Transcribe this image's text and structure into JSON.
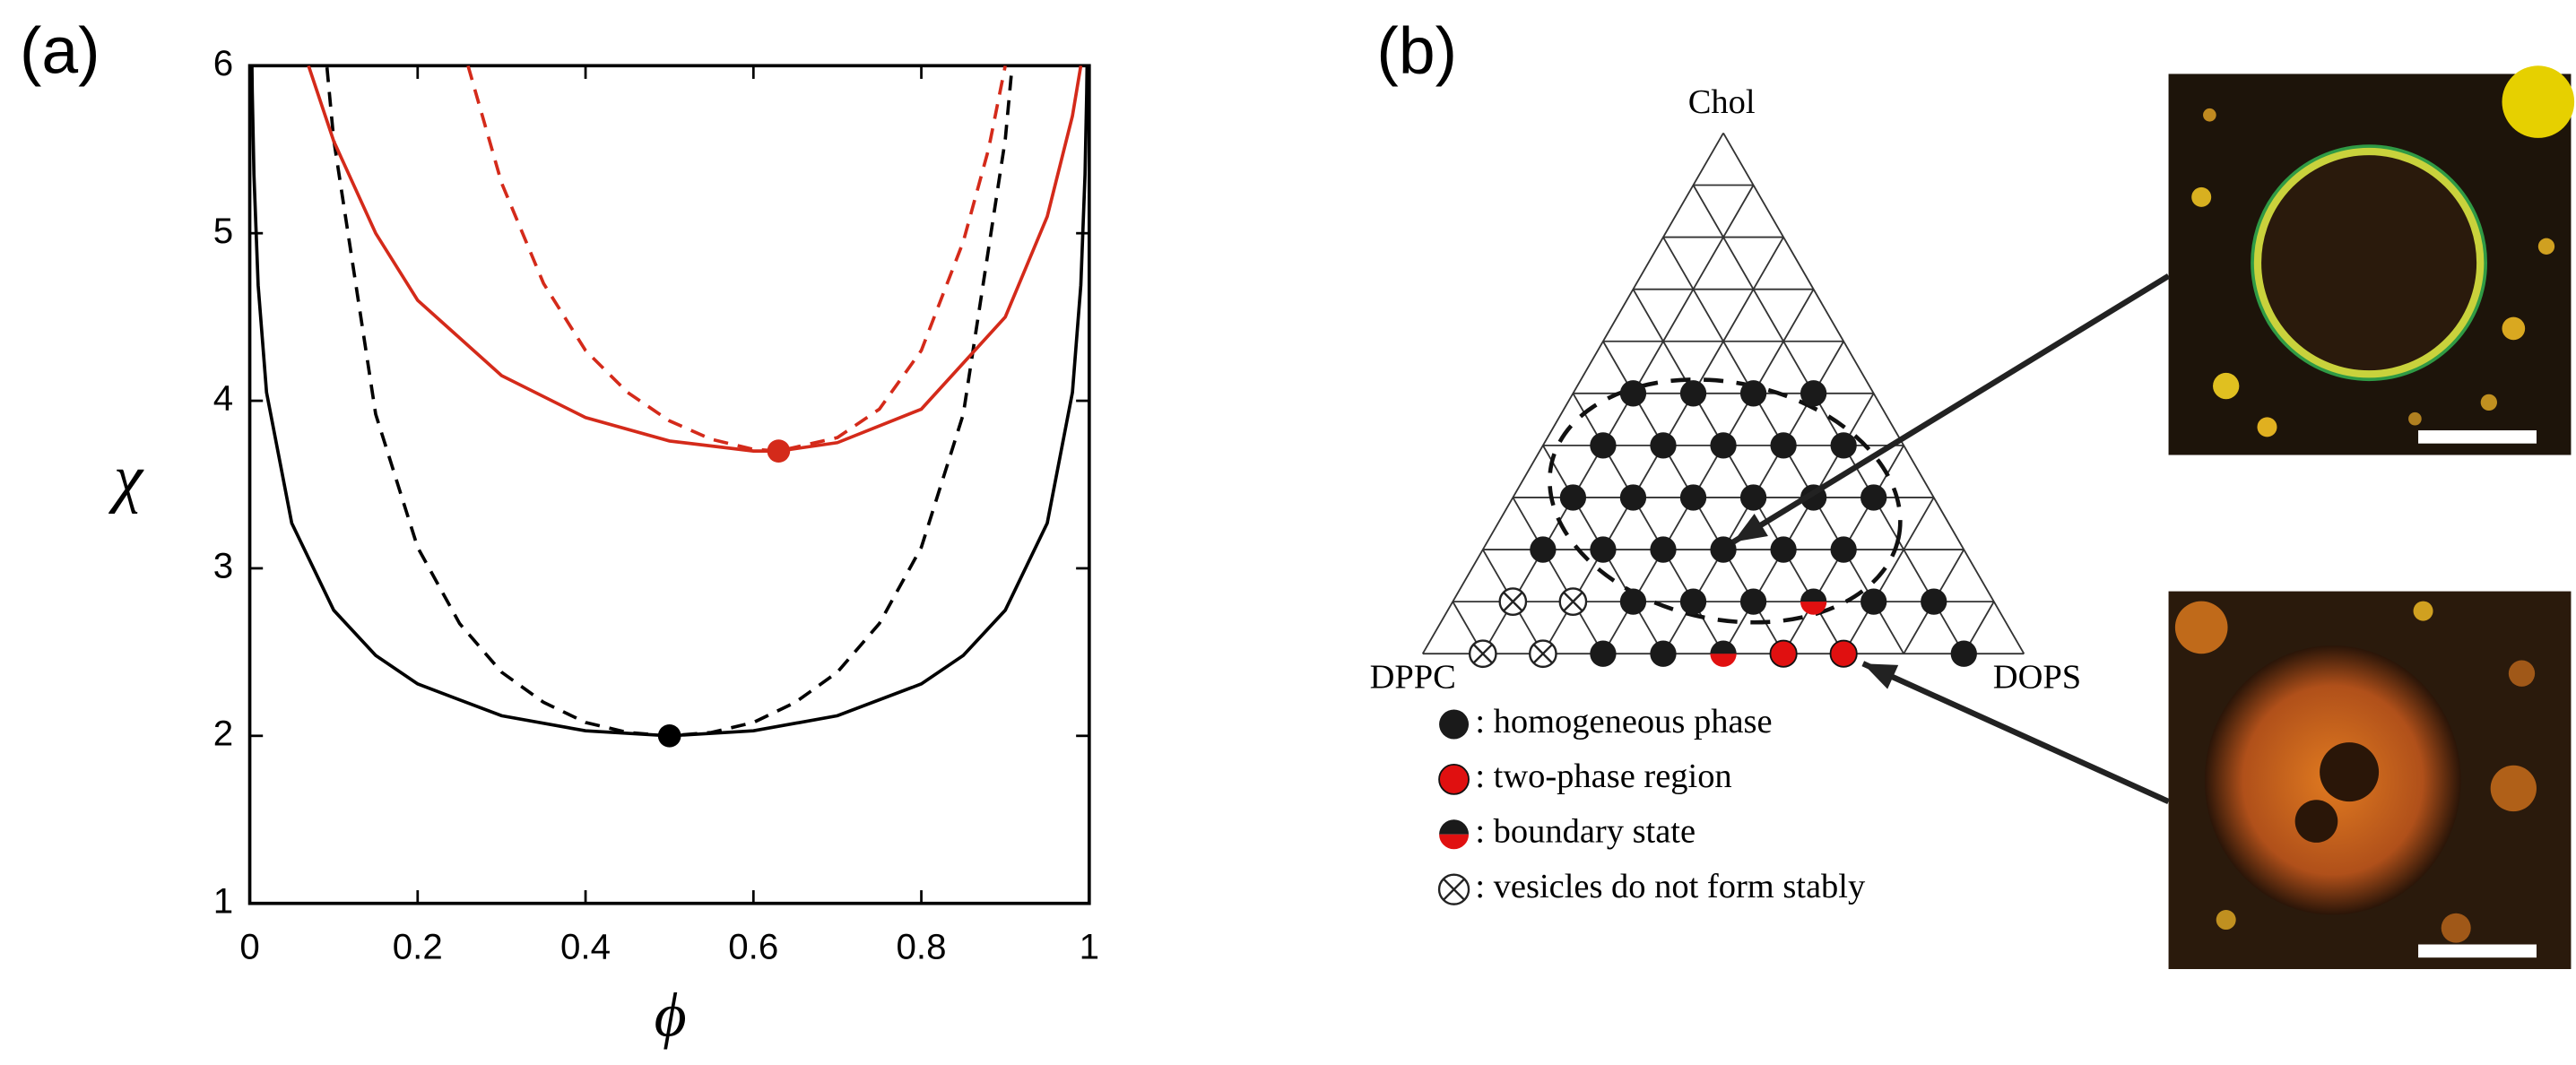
{
  "chart_data": {
    "type": "line",
    "panel_label": "(a)",
    "xlabel": "ϕ",
    "ylabel": "χ",
    "xlim": [
      0,
      1
    ],
    "ylim": [
      1,
      6
    ],
    "xticks": [
      0,
      0.2,
      0.4,
      0.6,
      0.8,
      1
    ],
    "yticks": [
      1,
      2,
      3,
      4,
      5,
      6
    ],
    "series": [
      {
        "color": "#000000",
        "linestyle": "solid",
        "x": [
          0.002,
          0.003,
          0.005,
          0.01,
          0.02,
          0.05,
          0.1,
          0.15,
          0.2,
          0.3,
          0.4,
          0.5,
          0.6,
          0.7,
          0.8,
          0.85,
          0.9,
          0.95,
          0.98,
          0.99,
          0.995,
          0.997,
          0.998
        ],
        "values": [
          6.24,
          5.84,
          5.35,
          4.69,
          4.05,
          3.27,
          2.75,
          2.48,
          2.31,
          2.12,
          2.03,
          2,
          2.03,
          2.12,
          2.31,
          2.48,
          2.75,
          3.27,
          4.05,
          4.69,
          5.35,
          5.84,
          6.24
        ]
      },
      {
        "color": "#000000",
        "linestyle": "dashed",
        "x": [
          0.092,
          0.1,
          0.15,
          0.2,
          0.25,
          0.3,
          0.35,
          0.4,
          0.45,
          0.5,
          0.55,
          0.6,
          0.65,
          0.7,
          0.75,
          0.8,
          0.85,
          0.9,
          0.908
        ],
        "values": [
          5.99,
          5.56,
          3.92,
          3.125,
          2.67,
          2.38,
          2.2,
          2.08,
          2.02,
          2,
          2.02,
          2.08,
          2.2,
          2.38,
          2.67,
          3.125,
          3.92,
          5.56,
          5.99
        ]
      },
      {
        "color": "#d42a1a",
        "linestyle": "solid",
        "x": [
          0.07,
          0.1,
          0.15,
          0.2,
          0.3,
          0.4,
          0.5,
          0.6,
          0.63,
          0.7,
          0.8,
          0.9,
          0.95,
          0.98,
          0.99
        ],
        "values": [
          6,
          5.55,
          5.0,
          4.6,
          4.15,
          3.9,
          3.76,
          3.7,
          3.7,
          3.75,
          3.95,
          4.5,
          5.1,
          5.7,
          6
        ]
      },
      {
        "color": "#d42a1a",
        "linestyle": "dashed",
        "x": [
          0.26,
          0.3,
          0.35,
          0.4,
          0.45,
          0.5,
          0.55,
          0.6,
          0.63,
          0.7,
          0.75,
          0.8,
          0.85,
          0.88,
          0.9
        ],
        "values": [
          6,
          5.3,
          4.7,
          4.3,
          4.05,
          3.88,
          3.77,
          3.71,
          3.7,
          3.78,
          3.95,
          4.3,
          4.95,
          5.5,
          6
        ]
      }
    ],
    "points": [
      {
        "x": 0.5,
        "y": 2,
        "color": "#000000"
      },
      {
        "x": 0.63,
        "y": 3.7,
        "color": "#d42a1a"
      }
    ]
  },
  "ternary": {
    "panel_label": "(b)",
    "vertices": [
      "Chol",
      "DPPC",
      "DOPS"
    ],
    "legend": [
      ": homogeneous phase",
      ": two-phase region",
      ": boundary state",
      ": vesicles do not form stably"
    ]
  }
}
